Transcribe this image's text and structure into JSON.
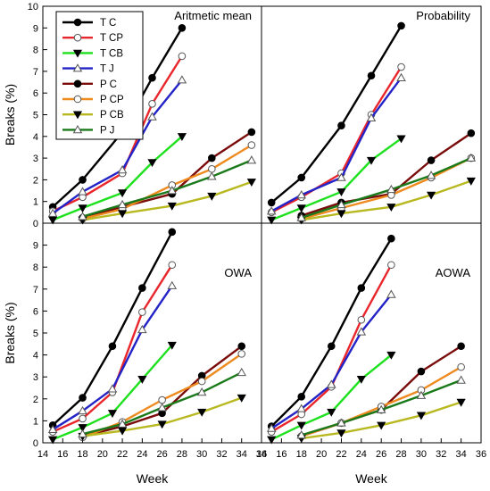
{
  "colors": {
    "T C": "#000000",
    "T CP": "#e8262b",
    "T CB": "#1ee11e",
    "T J": "#2323c8",
    "P C": "#7a0c0c",
    "P CP": "#ee8a1e",
    "P CB": "#b8b820",
    "P J": "#1a7a1a"
  },
  "markers": {
    "T C": "filled-circle",
    "T CP": "open-circle",
    "T CB": "filled-down-triangle",
    "T J": "open-up-triangle",
    "P C": "filled-circle",
    "P CP": "open-circle",
    "P CB": "filled-down-triangle",
    "P J": "open-up-triangle"
  },
  "legend": [
    "T C",
    "T CP",
    "T CB",
    "T J",
    "P C",
    "P CP",
    "P CB",
    "P J"
  ],
  "chart_data": [
    {
      "type": "line",
      "title": "Aritmetic mean",
      "xlabel": "",
      "ylabel": "Breaks (%)",
      "xlim": [
        14,
        36
      ],
      "ylim": [
        0,
        10
      ],
      "xticks": [],
      "yticks": [
        0,
        1,
        2,
        3,
        4,
        5,
        6,
        7,
        8,
        9,
        10
      ],
      "legend_position": "top-left",
      "series": [
        {
          "name": "T C",
          "x": [
            15,
            18,
            22,
            25,
            28
          ],
          "y": [
            0.75,
            2.0,
            4.2,
            6.7,
            9.0
          ]
        },
        {
          "name": "T CP",
          "x": [
            15,
            18,
            22,
            25,
            28
          ],
          "y": [
            0.55,
            1.2,
            2.3,
            5.5,
            7.7
          ]
        },
        {
          "name": "T CB",
          "x": [
            15,
            18,
            22,
            25,
            28
          ],
          "y": [
            0.15,
            0.7,
            1.4,
            2.8,
            4.0
          ]
        },
        {
          "name": "T J",
          "x": [
            15,
            18,
            22,
            25,
            28
          ],
          "y": [
            0.45,
            1.45,
            2.45,
            4.9,
            6.6
          ]
        },
        {
          "name": "P C",
          "x": [
            18,
            22,
            27,
            31,
            35
          ],
          "y": [
            0.25,
            0.75,
            1.35,
            3.0,
            4.2
          ]
        },
        {
          "name": "P CP",
          "x": [
            18,
            22,
            27,
            31,
            35
          ],
          "y": [
            0.2,
            0.65,
            1.75,
            2.5,
            3.6
          ]
        },
        {
          "name": "P CB",
          "x": [
            18,
            22,
            27,
            31,
            35
          ],
          "y": [
            0.15,
            0.45,
            0.8,
            1.25,
            1.9
          ]
        },
        {
          "name": "P J",
          "x": [
            18,
            22,
            27,
            31,
            35
          ],
          "y": [
            0.3,
            0.85,
            1.5,
            2.15,
            2.9
          ]
        }
      ]
    },
    {
      "type": "line",
      "title": "Probability",
      "xlabel": "",
      "ylabel": "",
      "xlim": [
        14,
        36
      ],
      "ylim": [
        0,
        10
      ],
      "xticks": [],
      "yticks": [],
      "series": [
        {
          "name": "T C",
          "x": [
            15,
            18,
            22,
            25,
            28
          ],
          "y": [
            0.95,
            2.1,
            4.5,
            6.8,
            9.1
          ]
        },
        {
          "name": "T CP",
          "x": [
            15,
            18,
            22,
            25,
            28
          ],
          "y": [
            0.5,
            1.2,
            2.3,
            5.0,
            7.2
          ]
        },
        {
          "name": "T CB",
          "x": [
            15,
            18,
            22,
            25,
            28
          ],
          "y": [
            0.15,
            0.7,
            1.45,
            2.9,
            3.9
          ]
        },
        {
          "name": "T J",
          "x": [
            15,
            18,
            22,
            25,
            28
          ],
          "y": [
            0.55,
            1.3,
            2.1,
            4.85,
            6.7
          ]
        },
        {
          "name": "P C",
          "x": [
            18,
            22,
            27,
            31,
            35
          ],
          "y": [
            0.35,
            0.95,
            1.35,
            2.9,
            4.15
          ]
        },
        {
          "name": "P CP",
          "x": [
            18,
            22,
            27,
            31,
            35
          ],
          "y": [
            0.2,
            0.7,
            1.3,
            2.1,
            3.0
          ]
        },
        {
          "name": "P CB",
          "x": [
            18,
            22,
            27,
            31,
            35
          ],
          "y": [
            0.15,
            0.45,
            0.75,
            1.3,
            1.95
          ]
        },
        {
          "name": "P J",
          "x": [
            18,
            22,
            27,
            31,
            35
          ],
          "y": [
            0.25,
            0.85,
            1.55,
            2.2,
            3.0
          ]
        }
      ]
    },
    {
      "type": "line",
      "title": "OWA",
      "xlabel": "Week",
      "ylabel": "Breaks (%)",
      "xlim": [
        14,
        36
      ],
      "ylim": [
        0,
        10
      ],
      "xticks": [
        14,
        16,
        18,
        20,
        22,
        24,
        26,
        28,
        30,
        32,
        34,
        36
      ],
      "yticks": [
        0,
        1,
        2,
        3,
        4,
        5,
        6,
        7,
        8,
        9
      ],
      "series": [
        {
          "name": "T C",
          "x": [
            15,
            18,
            21,
            24,
            27
          ],
          "y": [
            0.8,
            2.05,
            4.4,
            7.05,
            9.6
          ]
        },
        {
          "name": "T CP",
          "x": [
            15,
            18,
            21,
            24,
            27
          ],
          "y": [
            0.5,
            1.1,
            2.3,
            5.95,
            8.1
          ]
        },
        {
          "name": "T CB",
          "x": [
            15,
            18,
            21,
            24,
            27
          ],
          "y": [
            0.15,
            0.7,
            1.35,
            2.9,
            4.45
          ]
        },
        {
          "name": "T J",
          "x": [
            15,
            18,
            21,
            24,
            27
          ],
          "y": [
            0.6,
            1.45,
            2.45,
            5.15,
            7.15
          ]
        },
        {
          "name": "P C",
          "x": [
            18,
            22,
            26,
            30,
            34
          ],
          "y": [
            0.3,
            0.75,
            1.35,
            3.05,
            4.4
          ]
        },
        {
          "name": "P CP",
          "x": [
            18,
            22,
            26,
            30,
            34
          ],
          "y": [
            0.25,
            0.95,
            1.95,
            2.8,
            4.05
          ]
        },
        {
          "name": "P CB",
          "x": [
            18,
            22,
            26,
            30,
            34
          ],
          "y": [
            0.3,
            0.55,
            0.85,
            1.4,
            2.05
          ]
        },
        {
          "name": "P J",
          "x": [
            18,
            22,
            26,
            30,
            34
          ],
          "y": [
            0.4,
            0.85,
            1.6,
            2.3,
            3.2
          ]
        }
      ]
    },
    {
      "type": "line",
      "title": "AOWA",
      "xlabel": "Week",
      "ylabel": "",
      "xlim": [
        14,
        36
      ],
      "ylim": [
        0,
        10
      ],
      "xticks": [
        14,
        16,
        18,
        20,
        22,
        24,
        26,
        28,
        30,
        32,
        34,
        36
      ],
      "yticks": [],
      "series": [
        {
          "name": "T C",
          "x": [
            15,
            18,
            21,
            24,
            27
          ],
          "y": [
            0.75,
            2.1,
            4.4,
            7.05,
            9.3
          ]
        },
        {
          "name": "T CP",
          "x": [
            15,
            18,
            21,
            24,
            27
          ],
          "y": [
            0.5,
            1.3,
            2.55,
            5.6,
            8.1
          ]
        },
        {
          "name": "T CB",
          "x": [
            15,
            18,
            21,
            24,
            27
          ],
          "y": [
            0.15,
            0.8,
            1.4,
            2.9,
            4.0
          ]
        },
        {
          "name": "T J",
          "x": [
            15,
            18,
            21,
            24,
            27
          ],
          "y": [
            0.65,
            1.55,
            2.65,
            5.05,
            6.75
          ]
        },
        {
          "name": "P C",
          "x": [
            18,
            22,
            26,
            30,
            34
          ],
          "y": [
            0.3,
            0.9,
            1.5,
            3.25,
            4.4
          ]
        },
        {
          "name": "P CP",
          "x": [
            18,
            22,
            26,
            30,
            34
          ],
          "y": [
            0.3,
            0.9,
            1.65,
            2.4,
            3.45
          ]
        },
        {
          "name": "P CB",
          "x": [
            18,
            22,
            26,
            30,
            34
          ],
          "y": [
            0.2,
            0.45,
            0.8,
            1.25,
            1.85
          ]
        },
        {
          "name": "P J",
          "x": [
            18,
            22,
            26,
            30,
            34
          ],
          "y": [
            0.35,
            0.9,
            1.5,
            2.15,
            2.85
          ]
        }
      ]
    }
  ]
}
